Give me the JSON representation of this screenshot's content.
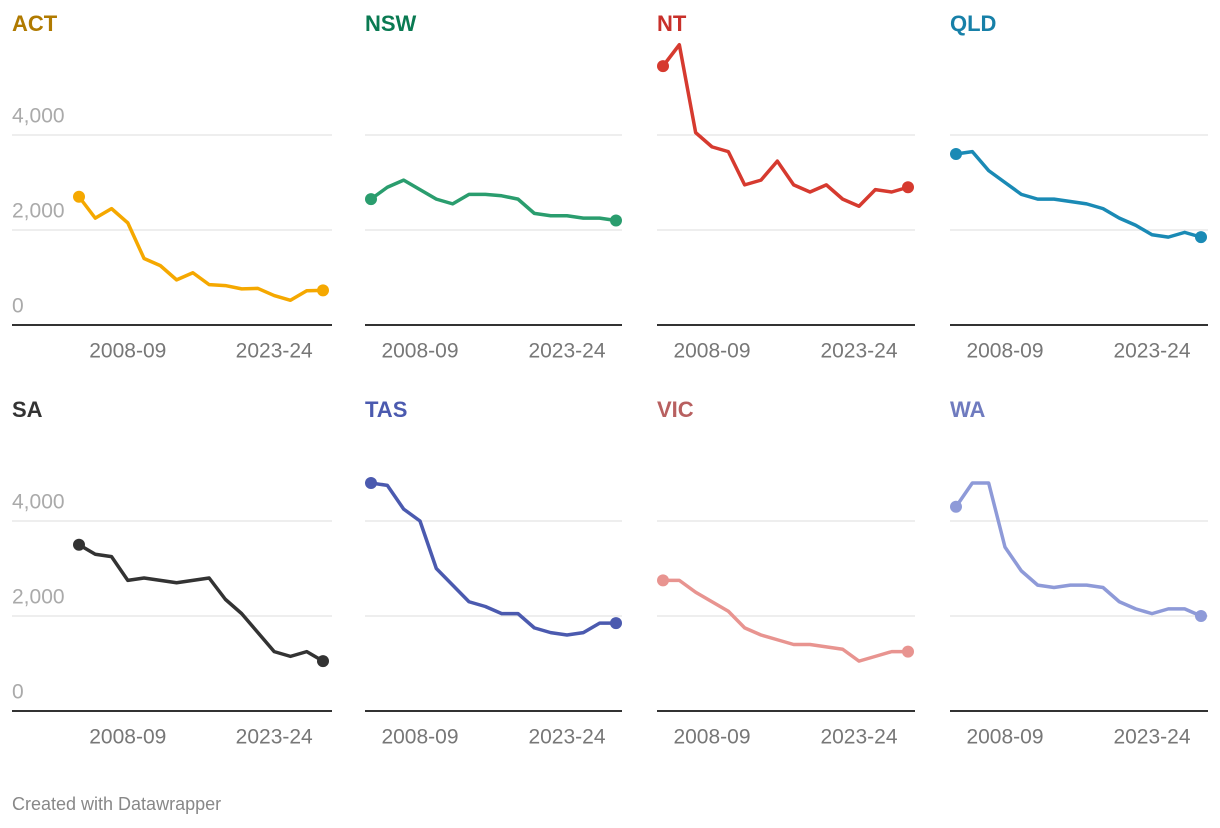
{
  "chart_data": [
    {
      "type": "line",
      "title": "ACT",
      "title_color": "#b07a00",
      "color": "#f5a800",
      "categories": [
        null,
        null,
        null,
        "2008-09",
        null,
        null,
        null,
        null,
        null,
        null,
        null,
        null,
        "2023-24",
        null,
        null,
        null
      ],
      "values": [
        2700,
        2250,
        2450,
        2150,
        1400,
        1250,
        950,
        1100,
        850,
        830,
        760,
        770,
        620,
        520,
        720,
        730
      ],
      "ylim": [
        0,
        6000
      ],
      "yticks": [
        0,
        {
          "value": 2000,
          "label": "2,000"
        },
        {
          "value": 4000,
          "label": "4,000"
        }
      ],
      "grid": true
    },
    {
      "type": "line",
      "title": "NSW",
      "title_color": "#0a7a52",
      "color": "#2a9d6e",
      "categories": [
        null,
        null,
        null,
        "2008-09",
        null,
        null,
        null,
        null,
        null,
        null,
        null,
        null,
        "2023-24",
        null,
        null,
        null
      ],
      "values": [
        2650,
        2900,
        3050,
        2850,
        2650,
        2550,
        2750,
        2750,
        2720,
        2650,
        2350,
        2300,
        2300,
        2250,
        2250,
        2200
      ],
      "ylim": [
        0,
        6000
      ],
      "yticks": [
        0,
        2000,
        4000
      ],
      "grid": true
    },
    {
      "type": "line",
      "title": "NT",
      "title_color": "#c8302a",
      "color": "#d63a2f",
      "categories": [
        null,
        null,
        null,
        "2008-09",
        null,
        null,
        null,
        null,
        null,
        null,
        null,
        null,
        "2023-24",
        null,
        null,
        null
      ],
      "values": [
        5450,
        5900,
        4050,
        3750,
        3650,
        2950,
        3050,
        3450,
        2950,
        2800,
        2950,
        2650,
        2500,
        2850,
        2800,
        2900
      ],
      "ylim": [
        0,
        6000
      ],
      "yticks": [
        0,
        2000,
        4000
      ],
      "grid": true
    },
    {
      "type": "line",
      "title": "QLD",
      "title_color": "#1780a8",
      "color": "#1a8ab5",
      "categories": [
        null,
        null,
        null,
        "2008-09",
        null,
        null,
        null,
        null,
        null,
        null,
        null,
        null,
        "2023-24",
        null,
        null,
        null
      ],
      "values": [
        3600,
        3650,
        3250,
        3000,
        2750,
        2650,
        2650,
        2600,
        2550,
        2450,
        2250,
        2100,
        1900,
        1850,
        1950,
        1850
      ],
      "ylim": [
        0,
        6000
      ],
      "yticks": [
        0,
        2000,
        4000
      ],
      "grid": true
    },
    {
      "type": "line",
      "title": "SA",
      "title_color": "#333333",
      "color": "#333333",
      "categories": [
        null,
        null,
        null,
        "2008-09",
        null,
        null,
        null,
        null,
        null,
        null,
        null,
        null,
        "2023-24",
        null,
        null,
        null
      ],
      "values": [
        3500,
        3300,
        3250,
        2750,
        2800,
        2750,
        2700,
        2750,
        2800,
        2350,
        2050,
        1650,
        1250,
        1150,
        1250,
        1050
      ],
      "ylim": [
        0,
        6000
      ],
      "yticks": [
        0,
        {
          "value": 2000,
          "label": "2,000"
        },
        {
          "value": 4000,
          "label": "4,000"
        }
      ],
      "grid": true
    },
    {
      "type": "line",
      "title": "TAS",
      "title_color": "#4b5aaf",
      "color": "#4b5aaf",
      "categories": [
        null,
        null,
        null,
        "2008-09",
        null,
        null,
        null,
        null,
        null,
        null,
        null,
        null,
        "2023-24",
        null,
        null,
        null
      ],
      "values": [
        4800,
        4750,
        4250,
        4000,
        3000,
        2650,
        2300,
        2200,
        2050,
        2050,
        1750,
        1650,
        1600,
        1650,
        1850,
        1850
      ],
      "ylim": [
        0,
        6000
      ],
      "yticks": [
        0,
        2000,
        4000
      ],
      "grid": true
    },
    {
      "type": "line",
      "title": "VIC",
      "title_color": "#b86060",
      "color": "#e89490",
      "categories": [
        null,
        null,
        null,
        "2008-09",
        null,
        null,
        null,
        null,
        null,
        null,
        null,
        null,
        "2023-24",
        null,
        null,
        null
      ],
      "values": [
        2750,
        2750,
        2500,
        2300,
        2100,
        1750,
        1600,
        1500,
        1400,
        1400,
        1350,
        1300,
        1050,
        1150,
        1250,
        1250
      ],
      "ylim": [
        0,
        6000
      ],
      "yticks": [
        0,
        2000,
        4000
      ],
      "grid": true
    },
    {
      "type": "line",
      "title": "WA",
      "title_color": "#6f7bbf",
      "color": "#8e9ad8",
      "categories": [
        null,
        null,
        null,
        "2008-09",
        null,
        null,
        null,
        null,
        null,
        null,
        null,
        null,
        "2023-24",
        null,
        null,
        null
      ],
      "values": [
        4300,
        4800,
        4800,
        3450,
        2950,
        2650,
        2600,
        2650,
        2650,
        2600,
        2300,
        2150,
        2050,
        2150,
        2150,
        2000
      ],
      "ylim": [
        0,
        6000
      ],
      "yticks": [
        0,
        2000,
        4000
      ],
      "grid": true
    }
  ],
  "footer": "Created with Datawrapper"
}
